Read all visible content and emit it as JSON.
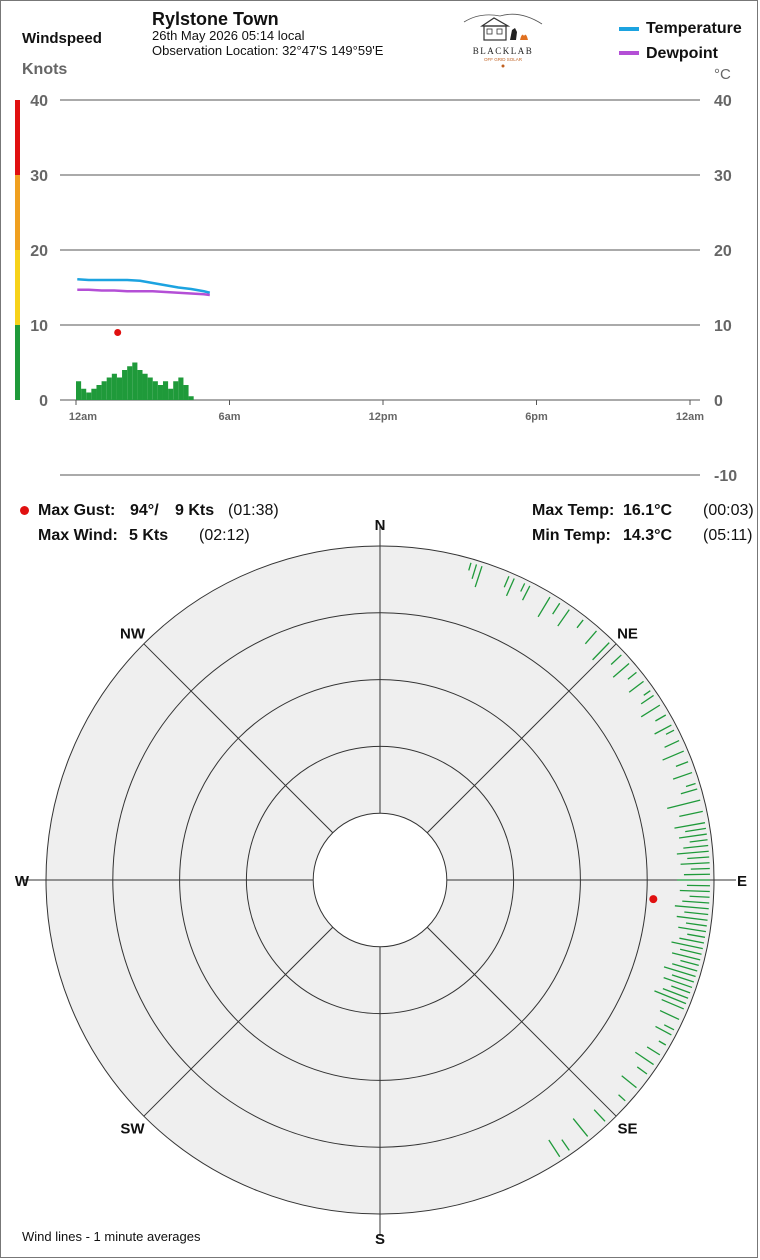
{
  "header": {
    "station_name": "Rylstone Town",
    "date_time": "26th May 2026  05:14 local",
    "observation_location": "Observation Location: 32°47'S 149°59'E",
    "windspeed_label": "Windspeed",
    "knots_label": "Knots",
    "celsius_label": "°C"
  },
  "logo": {
    "text": "BLACKLAB",
    "subtext": "OFF GRID SOLAR"
  },
  "legend": [
    {
      "name": "Temperature",
      "color": "#1ca3e0"
    },
    {
      "name": "Dewpoint",
      "color": "#b44fd6"
    }
  ],
  "stats": {
    "max_gust_label": "Max Gust:",
    "max_gust_dir": "94°/",
    "max_gust_speed": "9 Kts",
    "max_gust_time": "(01:38)",
    "max_wind_label": "Max Wind:",
    "max_wind_speed": "5 Kts",
    "max_wind_time": "(02:12)",
    "max_temp_label": "Max Temp:",
    "max_temp_value": "16.1°C",
    "max_temp_time": "(00:03)",
    "min_temp_label": "Min Temp:",
    "min_temp_value": "14.3°C",
    "min_temp_time": "(05:11)"
  },
  "footer_note": "Wind lines - 1 minute averages",
  "colors": {
    "wind_bar": "#1f9a3a",
    "gust_marker": "#e01010",
    "scale_green": "#1f9a3a",
    "scale_yellow": "#f7d21a",
    "scale_orange": "#f0a020",
    "scale_red": "#e01010",
    "rose_fill": "#efefef",
    "grid": "#333333"
  },
  "chart_data": [
    {
      "type": "line",
      "title": "Rylstone Town",
      "xlabel": "",
      "ylabel_left": "Knots",
      "ylabel_right": "°C",
      "x_ticks": [
        "12am",
        "6am",
        "12pm",
        "6pm",
        "12am"
      ],
      "x_range_hours": [
        0,
        24
      ],
      "y_left_ticks": [
        0,
        10,
        20,
        30,
        40
      ],
      "y_left_range": [
        0,
        40
      ],
      "y_right_ticks": [
        -10,
        0,
        10,
        20,
        30,
        40
      ],
      "y_right_range": [
        -10,
        40
      ],
      "grid": true,
      "wind_scale_bands": [
        {
          "from": 0,
          "to": 10,
          "color": "#1f9a3a"
        },
        {
          "from": 10,
          "to": 20,
          "color": "#f7d21a"
        },
        {
          "from": 20,
          "to": 30,
          "color": "#f0a020"
        },
        {
          "from": 30,
          "to": 40,
          "color": "#e01010"
        }
      ],
      "series": [
        {
          "name": "Temperature",
          "color": "#1ca3e0",
          "x_hours": [
            0.05,
            0.5,
            1.0,
            1.5,
            2.0,
            2.5,
            3.0,
            3.5,
            4.0,
            4.5,
            5.0,
            5.23
          ],
          "values": [
            16.1,
            16.0,
            16.0,
            16.0,
            16.0,
            15.9,
            15.6,
            15.3,
            15.0,
            14.8,
            14.5,
            14.3
          ]
        },
        {
          "name": "Dewpoint",
          "color": "#b44fd6",
          "x_hours": [
            0.05,
            0.5,
            1.0,
            1.5,
            2.0,
            2.5,
            3.0,
            3.5,
            4.0,
            4.5,
            5.0,
            5.23
          ],
          "values": [
            14.7,
            14.7,
            14.6,
            14.6,
            14.5,
            14.5,
            14.5,
            14.4,
            14.3,
            14.2,
            14.1,
            14.0
          ]
        },
        {
          "name": "Wind speed",
          "type": "bar",
          "color": "#1f9a3a",
          "x_hours": [
            0.0,
            0.2,
            0.4,
            0.6,
            0.8,
            1.0,
            1.2,
            1.4,
            1.6,
            1.8,
            2.0,
            2.2,
            2.4,
            2.6,
            2.8,
            3.0,
            3.2,
            3.4,
            3.6,
            3.8,
            4.0,
            4.2,
            4.4
          ],
          "values": [
            2.5,
            1.5,
            1.0,
            1.5,
            2.0,
            2.5,
            3.0,
            3.5,
            3.0,
            4.0,
            4.5,
            5.0,
            4.0,
            3.5,
            3.0,
            2.5,
            2.0,
            2.5,
            1.5,
            2.5,
            3.0,
            2.0,
            0.5
          ]
        },
        {
          "name": "Max gust",
          "type": "scatter",
          "color": "#e01010",
          "x_hours": [
            1.63
          ],
          "values": [
            9
          ]
        }
      ]
    },
    {
      "type": "scatter",
      "subtype": "wind-rose",
      "direction_labels": [
        "N",
        "NE",
        "E",
        "SE",
        "S",
        "SW",
        "W",
        "NW"
      ],
      "rings": 5,
      "wind_lines_deg": [
        16,
        17,
        18,
        23,
        24,
        26,
        27,
        31,
        33,
        35,
        38,
        41,
        44,
        47,
        49,
        51,
        53,
        55,
        56,
        58,
        60,
        62,
        63,
        65,
        67,
        69,
        71,
        73,
        74,
        76,
        78,
        80,
        81,
        82,
        83,
        84,
        85,
        86,
        87,
        88,
        89,
        90,
        91,
        92,
        93,
        94,
        95,
        96,
        97,
        98,
        99,
        100,
        101,
        102,
        103,
        104,
        105,
        106,
        107,
        108,
        109,
        110,
        111,
        112,
        113,
        115,
        117,
        118,
        120,
        122,
        124,
        126,
        129,
        132,
        137,
        141,
        145,
        147
      ],
      "max_gust_direction_deg": 94,
      "max_gust_speed_kts": 9
    }
  ]
}
